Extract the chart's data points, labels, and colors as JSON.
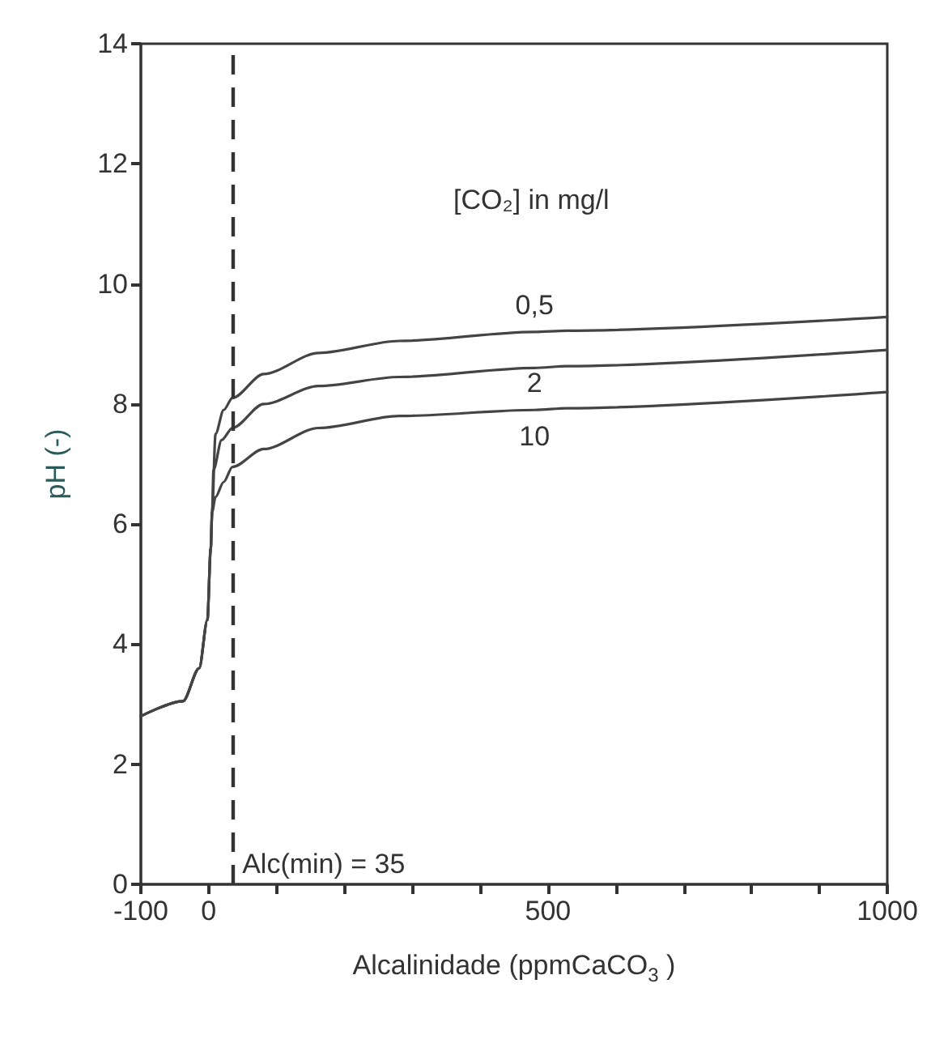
{
  "chart_data": {
    "type": "line",
    "xlabel": "Alcalinidade (ppmCaCO$_{3}$ )",
    "ylabel": "pH (-)",
    "legend_title": "[CO₂] in mg/l",
    "xlim": [
      -100,
      1000
    ],
    "ylim": [
      0,
      14
    ],
    "xticks": [
      -100,
      0,
      {
        "value": 100,
        "label": null
      },
      {
        "value": 200,
        "label": null
      },
      {
        "value": 300,
        "label": null
      },
      {
        "value": 400,
        "label": null
      },
      500,
      {
        "value": 600,
        "label": null
      },
      {
        "value": 700,
        "label": null
      },
      {
        "value": 800,
        "label": null
      },
      {
        "value": 900,
        "label": null
      },
      1000
    ],
    "yticks": [
      0,
      2,
      4,
      6,
      8,
      10,
      12,
      14
    ],
    "grid": false,
    "legend": false,
    "marker": "none",
    "line_style": "solid",
    "ref_lines": [
      {
        "axis": "x",
        "value": 35,
        "label": "Alc(min) = 35",
        "color": "#333333",
        "line_style": "dashed"
      }
    ],
    "series": [
      {
        "name": "0,5",
        "color": "#444444",
        "x": [
          -100,
          -38,
          -14,
          -2,
          3,
          5,
          10,
          22,
          35,
          81,
          162,
          281,
          480,
          528,
          1000
        ],
        "values": [
          2.8,
          3.05,
          3.6,
          4.4,
          5.6,
          6.2,
          7.5,
          7.9,
          8.1,
          8.5,
          8.85,
          9.05,
          9.2,
          9.22,
          9.45
        ]
      },
      {
        "name": "2",
        "color": "#444444",
        "x": [
          -100,
          -38,
          -14,
          -2,
          3,
          5,
          7,
          19,
          35,
          81,
          162,
          281,
          480,
          528,
          1000
        ],
        "values": [
          2.8,
          3.05,
          3.6,
          4.4,
          5.6,
          6.2,
          6.9,
          7.4,
          7.6,
          8.0,
          8.3,
          8.45,
          8.6,
          8.63,
          8.9
        ]
      },
      {
        "name": "10",
        "color": "#444444",
        "x": [
          -100,
          -38,
          -14,
          -2,
          3,
          5,
          10,
          22,
          35,
          81,
          162,
          281,
          480,
          528,
          1000
        ],
        "values": [
          2.8,
          3.05,
          3.6,
          4.4,
          5.6,
          6.2,
          6.45,
          6.7,
          6.95,
          7.25,
          7.6,
          7.8,
          7.9,
          7.93,
          8.2
        ]
      }
    ]
  }
}
